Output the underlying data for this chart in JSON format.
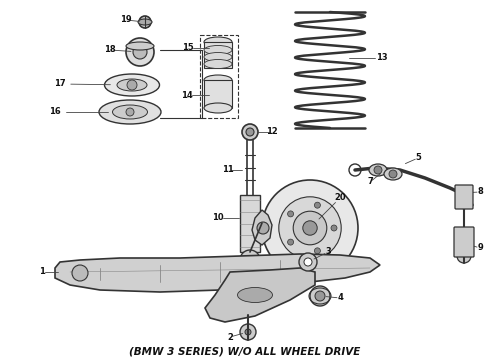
{
  "title": "(BMW 3 SERIES) W/O ALL WHEEL DRIVE",
  "bg_color": "#ffffff",
  "lc": "#333333",
  "fig_width": 4.9,
  "fig_height": 3.6,
  "dpi": 100
}
